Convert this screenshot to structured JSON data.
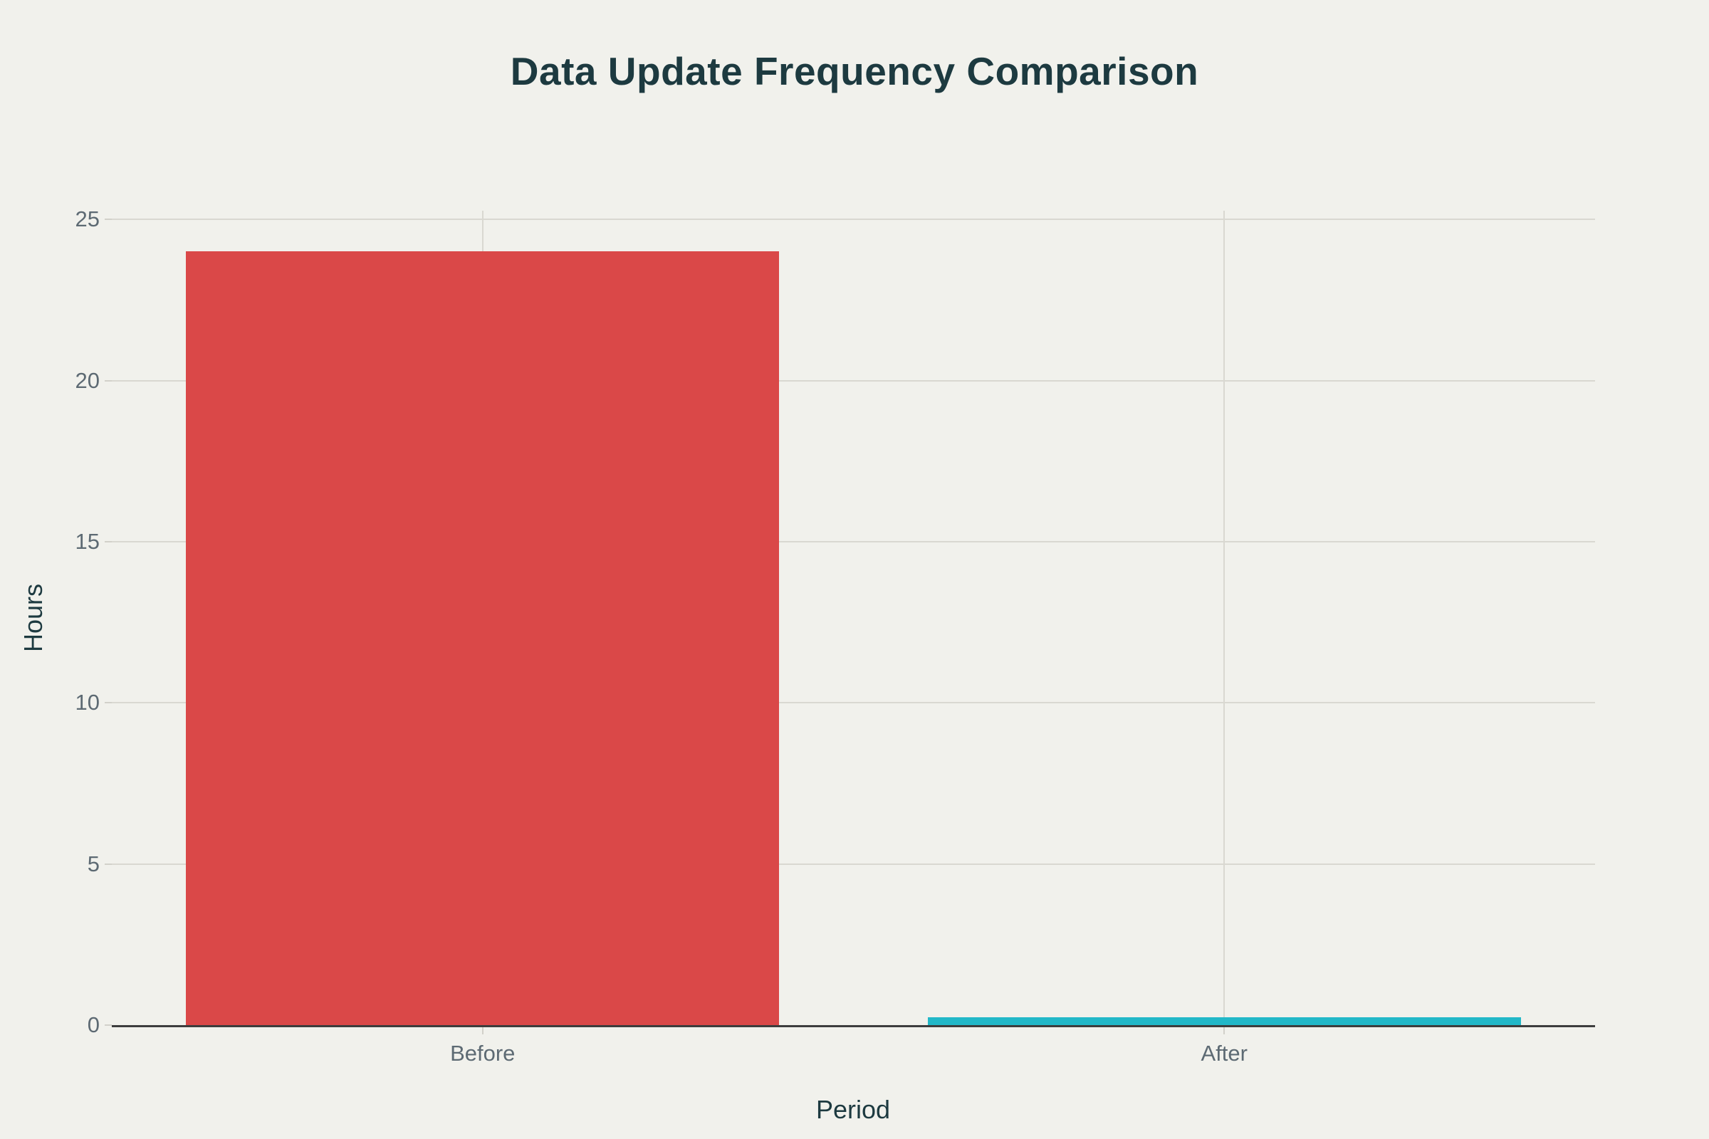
{
  "chart_data": {
    "type": "bar",
    "title": "Data Update Frequency Comparison",
    "xlabel": "Period",
    "ylabel": "Hours",
    "categories": [
      "Before",
      "After"
    ],
    "values": [
      24,
      0.25
    ],
    "bar_colors": [
      "#da4848",
      "#22b8c8"
    ],
    "ylim": [
      0,
      25.27
    ],
    "yticks": [
      0,
      5,
      10,
      15,
      20,
      25
    ],
    "grid": true,
    "legend": "none",
    "bar_width_fraction": 0.8
  },
  "colors": {
    "background": "#f1f1ec",
    "title_text": "#1d3a40",
    "axis_title_text": "#1d3a40",
    "tick_text": "#5d6a73",
    "gridline": "#d9d8d1",
    "tick_mark": "#d2d1ca",
    "axis_line": "#3d3d3d"
  }
}
